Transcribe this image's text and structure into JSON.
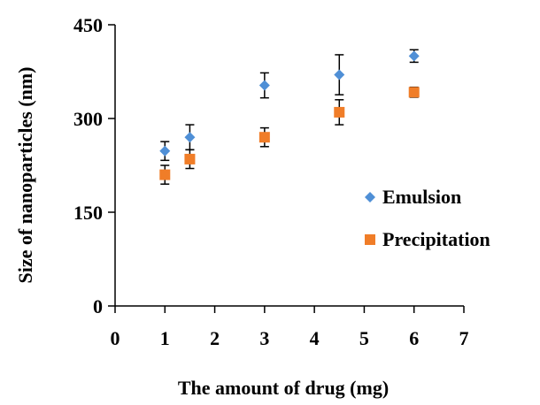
{
  "chart_data": {
    "type": "scatter",
    "xlabel": "The amount of drug (mg)",
    "ylabel": "Size of nanoparticles (nm)",
    "xlim": [
      0,
      7
    ],
    "ylim": [
      0,
      450
    ],
    "xticks": [
      "0",
      "1",
      "2",
      "3",
      "4",
      "5",
      "6",
      "7"
    ],
    "yticks": [
      "0",
      "150",
      "300",
      "450"
    ],
    "grid": false,
    "legend_position": "right",
    "series": [
      {
        "name": "Emulsion",
        "color": "#4f8fd6",
        "marker": "diamond",
        "points": [
          {
            "x": 1,
            "y": 248,
            "err": 15
          },
          {
            "x": 1.5,
            "y": 270,
            "err": 20
          },
          {
            "x": 3,
            "y": 353,
            "err": 20
          },
          {
            "x": 4.5,
            "y": 370,
            "err": 32
          },
          {
            "x": 6,
            "y": 400,
            "err": 10
          }
        ]
      },
      {
        "name": "Precipitation",
        "color": "#f07d28",
        "marker": "square",
        "points": [
          {
            "x": 1,
            "y": 210,
            "err": 15
          },
          {
            "x": 1.5,
            "y": 235,
            "err": 15
          },
          {
            "x": 3,
            "y": 270,
            "err": 15
          },
          {
            "x": 4.5,
            "y": 310,
            "err": 20
          },
          {
            "x": 6,
            "y": 342,
            "err": 8
          }
        ]
      }
    ]
  }
}
